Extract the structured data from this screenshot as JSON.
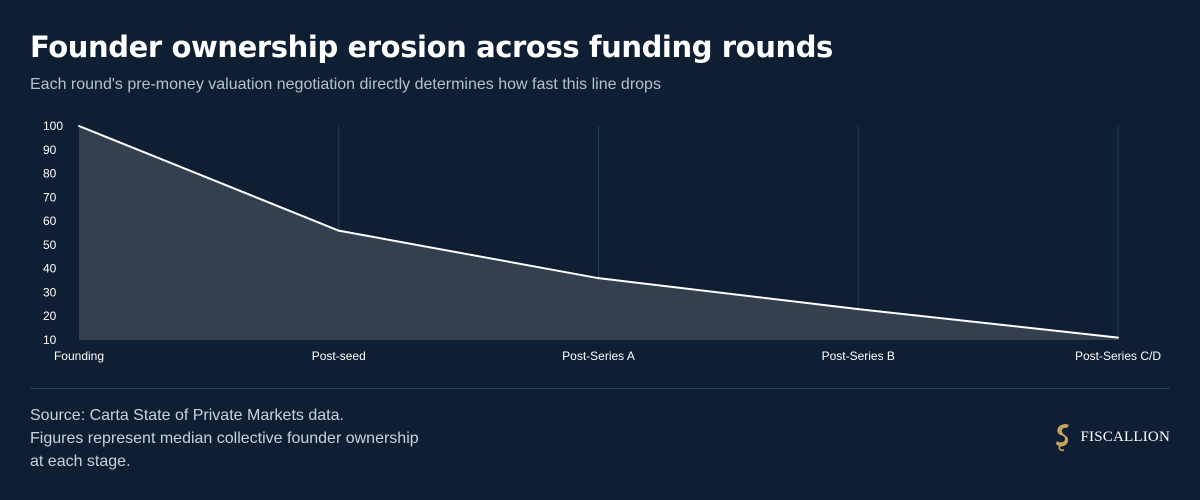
{
  "header": {
    "title": "Founder ownership erosion across funding rounds",
    "subtitle": "Each round's pre-money valuation negotiation directly determines how fast this line drops"
  },
  "footer": {
    "source_line1": "Source: Carta State of Private Markets data.",
    "source_line2": "Figures represent median collective founder ownership at each stage.",
    "brand": "FISCALLION"
  },
  "colors": {
    "background": "#0f1f33",
    "area_fill": "#34404f",
    "line": "#ffffff",
    "grid": "#2a3c52",
    "logo_gold": "#c9a45c"
  },
  "icons": {
    "logo": "seahorse-logo-icon"
  },
  "chart_data": {
    "type": "area",
    "categories": [
      "Founding",
      "Post-seed",
      "Post-Series A",
      "Post-Series B",
      "Post-Series C/D"
    ],
    "values": [
      100,
      56,
      36,
      23,
      11
    ],
    "ylim": [
      10,
      100
    ],
    "yticks": [
      10,
      20,
      30,
      40,
      50,
      60,
      70,
      80,
      90,
      100
    ],
    "grid": "vertical",
    "legend": "none"
  }
}
